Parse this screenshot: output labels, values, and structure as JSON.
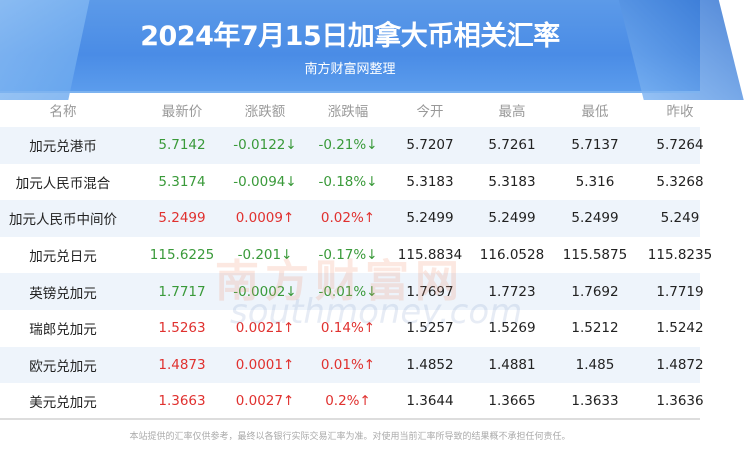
{
  "header": {
    "title": "2024年7月15日加拿大币相关汇率",
    "subtitle": "南方财富网整理"
  },
  "table": {
    "columns": [
      "名称",
      "最新价",
      "涨跌额",
      "涨跌幅",
      "今开",
      "最高",
      "最低",
      "昨收"
    ],
    "rows": [
      {
        "name": "加元兑港币",
        "latest": "5.7142",
        "change": "-0.0122↓",
        "pct": "-0.21%↓",
        "open": "5.7207",
        "high": "5.7261",
        "low": "5.7137",
        "prev": "5.7264",
        "trend": "down"
      },
      {
        "name": "加元人民币混合",
        "latest": "5.3174",
        "change": "-0.0094↓",
        "pct": "-0.18%↓",
        "open": "5.3183",
        "high": "5.3183",
        "low": "5.316",
        "prev": "5.3268",
        "trend": "down"
      },
      {
        "name": "加元人民币中间价",
        "latest": "5.2499",
        "change": "0.0009↑",
        "pct": "0.02%↑",
        "open": "5.2499",
        "high": "5.2499",
        "low": "5.2499",
        "prev": "5.249",
        "trend": "up"
      },
      {
        "name": "加元兑日元",
        "latest": "115.6225",
        "change": "-0.201↓",
        "pct": "-0.17%↓",
        "open": "115.8834",
        "high": "116.0528",
        "low": "115.5875",
        "prev": "115.8235",
        "trend": "down"
      },
      {
        "name": "英镑兑加元",
        "latest": "1.7717",
        "change": "-0.0002↓",
        "pct": "-0.01%↓",
        "open": "1.7697",
        "high": "1.7723",
        "low": "1.7692",
        "prev": "1.7719",
        "trend": "down"
      },
      {
        "name": "瑞郎兑加元",
        "latest": "1.5263",
        "change": "0.0021↑",
        "pct": "0.14%↑",
        "open": "1.5257",
        "high": "1.5269",
        "low": "1.5212",
        "prev": "1.5242",
        "trend": "up"
      },
      {
        "name": "欧元兑加元",
        "latest": "1.4873",
        "change": "0.0001↑",
        "pct": "0.01%↑",
        "open": "1.4852",
        "high": "1.4881",
        "low": "1.485",
        "prev": "1.4872",
        "trend": "up"
      },
      {
        "name": "美元兑加元",
        "latest": "1.3663",
        "change": "0.0027↑",
        "pct": "0.2%↑",
        "open": "1.3644",
        "high": "1.3665",
        "low": "1.3633",
        "prev": "1.3636",
        "trend": "up"
      }
    ]
  },
  "watermark": {
    "cn": "南方财富网",
    "en": "southmoney.com"
  },
  "footer": "本站提供的汇率仅供参考，最终以各银行实际交易汇率为准。对使用当前汇率所导致的结果概不承担任何责任。",
  "colors": {
    "up": "#e0312f",
    "down": "#3a9a3a",
    "banner": "#4a8ce6"
  }
}
